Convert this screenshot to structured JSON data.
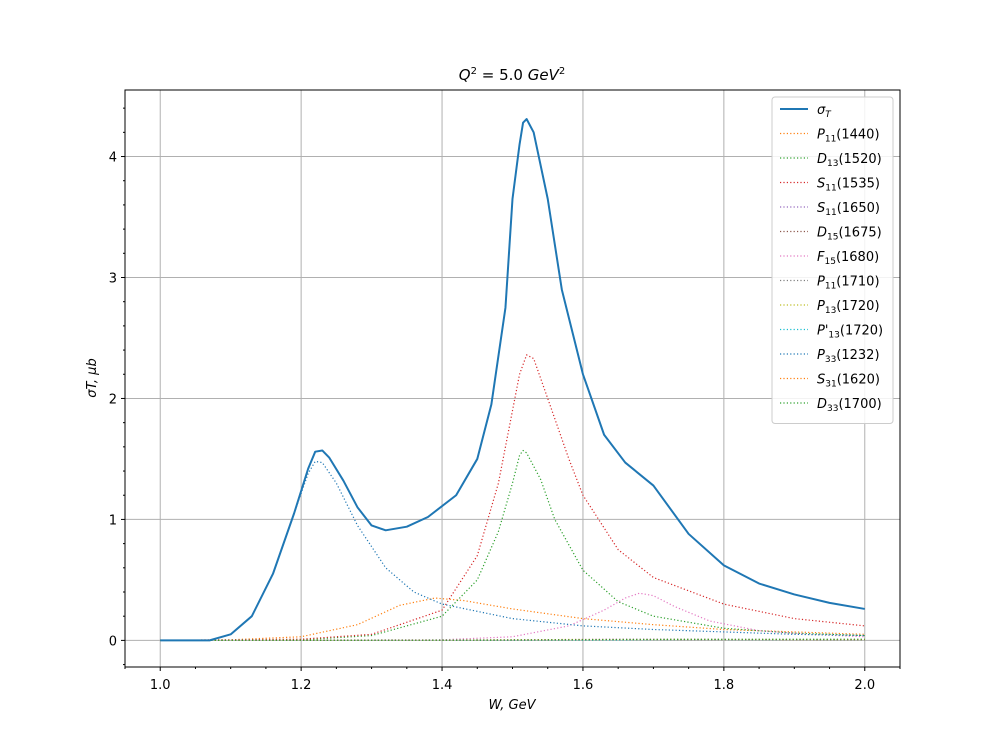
{
  "chart_data": {
    "type": "line",
    "title": "Q² = 5.0 GeV²",
    "xlabel": "W, GeV",
    "ylabel": "σT, μb",
    "xlim": [
      0.95,
      2.05
    ],
    "ylim": [
      -0.22,
      4.55
    ],
    "xticks": [
      1.0,
      1.2,
      1.4,
      1.6,
      1.8,
      2.0
    ],
    "xtick_labels": [
      "1.0",
      "1.2",
      "1.4",
      "1.6",
      "1.8",
      "2.0"
    ],
    "yticks": [
      0,
      1,
      2,
      3,
      4
    ],
    "ytick_labels": [
      "0",
      "1",
      "2",
      "3",
      "4"
    ],
    "grid": true,
    "legend_position": "top-right",
    "series": [
      {
        "name": "σT",
        "color": "#1f77b4",
        "style": "solid",
        "points": [
          [
            1.0,
            0
          ],
          [
            1.07,
            0
          ],
          [
            1.1,
            0.05
          ],
          [
            1.13,
            0.2
          ],
          [
            1.16,
            0.55
          ],
          [
            1.19,
            1.05
          ],
          [
            1.21,
            1.42
          ],
          [
            1.22,
            1.56
          ],
          [
            1.23,
            1.57
          ],
          [
            1.24,
            1.51
          ],
          [
            1.26,
            1.32
          ],
          [
            1.28,
            1.1
          ],
          [
            1.3,
            0.95
          ],
          [
            1.32,
            0.91
          ],
          [
            1.35,
            0.94
          ],
          [
            1.38,
            1.02
          ],
          [
            1.42,
            1.2
          ],
          [
            1.45,
            1.5
          ],
          [
            1.47,
            1.95
          ],
          [
            1.49,
            2.75
          ],
          [
            1.5,
            3.65
          ],
          [
            1.51,
            4.1
          ],
          [
            1.515,
            4.28
          ],
          [
            1.52,
            4.31
          ],
          [
            1.53,
            4.2
          ],
          [
            1.55,
            3.65
          ],
          [
            1.57,
            2.9
          ],
          [
            1.6,
            2.2
          ],
          [
            1.63,
            1.7
          ],
          [
            1.66,
            1.47
          ],
          [
            1.7,
            1.28
          ],
          [
            1.75,
            0.88
          ],
          [
            1.8,
            0.62
          ],
          [
            1.85,
            0.47
          ],
          [
            1.9,
            0.38
          ],
          [
            1.95,
            0.31
          ],
          [
            2.0,
            0.26
          ]
        ]
      },
      {
        "name": "P11(1440)",
        "color": "#ff7f0e",
        "style": "dotted",
        "points": [
          [
            1.0,
            0
          ],
          [
            1.1,
            0.005
          ],
          [
            1.2,
            0.03
          ],
          [
            1.28,
            0.13
          ],
          [
            1.34,
            0.29
          ],
          [
            1.39,
            0.35
          ],
          [
            1.43,
            0.33
          ],
          [
            1.5,
            0.26
          ],
          [
            1.6,
            0.18
          ],
          [
            1.7,
            0.13
          ],
          [
            1.8,
            0.09
          ],
          [
            1.9,
            0.07
          ],
          [
            2.0,
            0.05
          ]
        ]
      },
      {
        "name": "D13(1520)",
        "color": "#2ca02c",
        "style": "dotted",
        "points": [
          [
            1.0,
            0
          ],
          [
            1.2,
            0.005
          ],
          [
            1.3,
            0.04
          ],
          [
            1.4,
            0.2
          ],
          [
            1.45,
            0.5
          ],
          [
            1.48,
            0.9
          ],
          [
            1.5,
            1.3
          ],
          [
            1.51,
            1.53
          ],
          [
            1.515,
            1.57
          ],
          [
            1.52,
            1.55
          ],
          [
            1.54,
            1.33
          ],
          [
            1.56,
            1.0
          ],
          [
            1.6,
            0.58
          ],
          [
            1.65,
            0.32
          ],
          [
            1.7,
            0.2
          ],
          [
            1.8,
            0.1
          ],
          [
            1.9,
            0.06
          ],
          [
            2.0,
            0.04
          ]
        ]
      },
      {
        "name": "S11(1535)",
        "color": "#d62728",
        "style": "dotted",
        "points": [
          [
            1.0,
            0
          ],
          [
            1.2,
            0.01
          ],
          [
            1.3,
            0.05
          ],
          [
            1.4,
            0.25
          ],
          [
            1.45,
            0.7
          ],
          [
            1.48,
            1.3
          ],
          [
            1.5,
            1.9
          ],
          [
            1.51,
            2.2
          ],
          [
            1.52,
            2.36
          ],
          [
            1.53,
            2.33
          ],
          [
            1.55,
            2.0
          ],
          [
            1.58,
            1.5
          ],
          [
            1.6,
            1.2
          ],
          [
            1.65,
            0.75
          ],
          [
            1.7,
            0.52
          ],
          [
            1.8,
            0.3
          ],
          [
            1.9,
            0.18
          ],
          [
            2.0,
            0.12
          ]
        ]
      },
      {
        "name": "S11(1650)",
        "color": "#9467bd",
        "style": "dotted",
        "points": [
          [
            1.0,
            0
          ],
          [
            1.5,
            0.003
          ],
          [
            1.65,
            0.01
          ],
          [
            1.8,
            0.008
          ],
          [
            2.0,
            0.005
          ]
        ]
      },
      {
        "name": "D15(1675)",
        "color": "#8c564b",
        "style": "dotted",
        "points": [
          [
            1.0,
            0
          ],
          [
            1.5,
            0.002
          ],
          [
            1.67,
            0.006
          ],
          [
            1.85,
            0.004
          ],
          [
            2.0,
            0.003
          ]
        ]
      },
      {
        "name": "F15(1680)",
        "color": "#e377c2",
        "style": "dotted",
        "points": [
          [
            1.0,
            0
          ],
          [
            1.4,
            0.005
          ],
          [
            1.5,
            0.03
          ],
          [
            1.58,
            0.12
          ],
          [
            1.63,
            0.25
          ],
          [
            1.66,
            0.35
          ],
          [
            1.68,
            0.39
          ],
          [
            1.7,
            0.37
          ],
          [
            1.73,
            0.28
          ],
          [
            1.78,
            0.16
          ],
          [
            1.85,
            0.08
          ],
          [
            1.92,
            0.05
          ],
          [
            2.0,
            0.03
          ]
        ]
      },
      {
        "name": "P11(1710)",
        "color": "#7f7f7f",
        "style": "dotted",
        "points": [
          [
            1.0,
            0
          ],
          [
            1.6,
            0.003
          ],
          [
            1.75,
            0.008
          ],
          [
            2.0,
            0.006
          ]
        ]
      },
      {
        "name": "P13(1720)",
        "color": "#bcbd22",
        "style": "dotted",
        "points": [
          [
            1.0,
            0
          ],
          [
            1.6,
            0.003
          ],
          [
            1.75,
            0.008
          ],
          [
            2.0,
            0.006
          ]
        ]
      },
      {
        "name": "P'13(1720)",
        "color": "#17becf",
        "style": "dotted",
        "points": [
          [
            1.0,
            0
          ],
          [
            1.6,
            0.002
          ],
          [
            1.75,
            0.006
          ],
          [
            2.0,
            0.004
          ]
        ]
      },
      {
        "name": "P33(1232)",
        "color": "#1f77b4",
        "style": "dotted",
        "points": [
          [
            1.0,
            0
          ],
          [
            1.07,
            0
          ],
          [
            1.1,
            0.05
          ],
          [
            1.13,
            0.2
          ],
          [
            1.16,
            0.55
          ],
          [
            1.19,
            1.05
          ],
          [
            1.21,
            1.38
          ],
          [
            1.22,
            1.48
          ],
          [
            1.23,
            1.47
          ],
          [
            1.25,
            1.3
          ],
          [
            1.28,
            0.95
          ],
          [
            1.32,
            0.6
          ],
          [
            1.36,
            0.4
          ],
          [
            1.4,
            0.3
          ],
          [
            1.5,
            0.18
          ],
          [
            1.6,
            0.12
          ],
          [
            1.7,
            0.09
          ],
          [
            1.8,
            0.07
          ],
          [
            1.9,
            0.05
          ],
          [
            2.0,
            0.04
          ]
        ]
      },
      {
        "name": "S31(1620)",
        "color": "#ff7f0e",
        "style": "dotted",
        "points": [
          [
            1.0,
            0
          ],
          [
            1.4,
            0.002
          ],
          [
            1.6,
            0.008
          ],
          [
            2.0,
            0.006
          ]
        ]
      },
      {
        "name": "D33(1700)",
        "color": "#2ca02c",
        "style": "dotted",
        "points": [
          [
            1.0,
            0
          ],
          [
            1.4,
            0.002
          ],
          [
            1.7,
            0.008
          ],
          [
            2.0,
            0.01
          ]
        ]
      }
    ]
  }
}
